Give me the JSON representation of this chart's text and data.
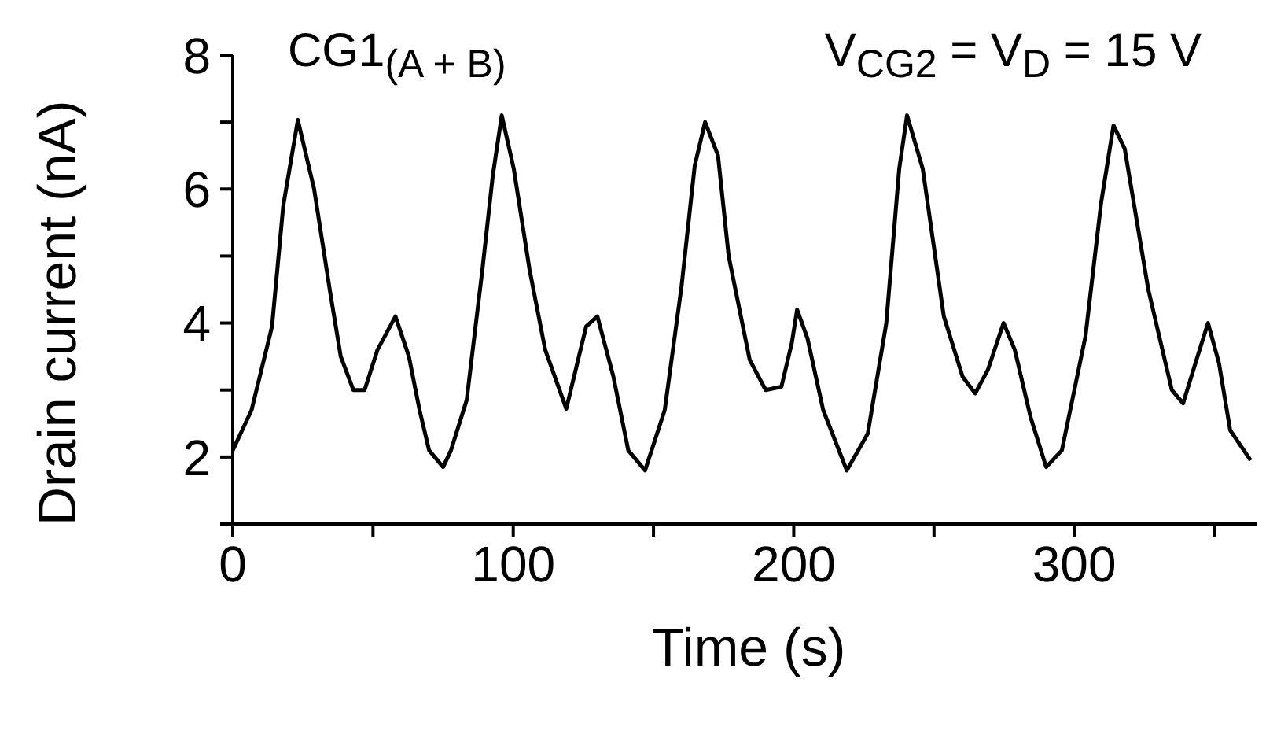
{
  "chart_data": {
    "type": "line",
    "xlabel": "Time (s)",
    "ylabel": "Drain current (nA)",
    "annotations": [
      "CG1$_{(A + B)}$",
      "V$_{CG2}$ = V$_{D}$ = 15 V"
    ],
    "xlim": [
      0,
      365
    ],
    "ylim": [
      1,
      8
    ],
    "xticks": [
      0,
      {
        "value": 50,
        "label": null
      },
      100,
      {
        "value": 150,
        "label": null
      },
      200,
      {
        "value": 250,
        "label": null
      },
      300,
      {
        "value": 350,
        "label": null
      }
    ],
    "yticks": [
      {
        "value": 1,
        "label": null
      },
      2,
      {
        "value": 3,
        "label": null
      },
      4,
      {
        "value": 5,
        "label": null
      },
      6,
      {
        "value": 7,
        "label": null
      },
      8
    ],
    "grid": false,
    "legend": false,
    "marker": "none",
    "line_style": "solid",
    "series": [
      {
        "color": "#000000",
        "x": [
          0,
          6.7,
          14,
          18,
          23.2,
          29,
          34.8,
          38.5,
          43,
          47,
          51.6,
          58,
          62.8,
          66.6,
          70,
          75,
          77.8,
          83.4,
          89,
          92.7,
          95.9,
          100.2,
          105.8,
          111.4,
          118.9,
          126,
          130,
          135.7,
          141,
          147,
          154,
          160,
          164.7,
          168.4,
          173,
          176.8,
          184.3,
          190,
          195.6,
          199.3,
          201.2,
          204.9,
          210.5,
          218.9,
          226.4,
          233,
          237.6,
          240.4,
          246,
          253.5,
          260.2,
          264.7,
          269.2,
          274.8,
          278.8,
          284.4,
          290,
          295.6,
          304,
          309.6,
          314,
          318,
          326.4,
          334.8,
          338.8,
          343.2,
          347.7,
          351.6,
          355.6,
          362.9
        ],
        "values": [
          2.1,
          2.7,
          3.95,
          5.75,
          7.03,
          6.0,
          4.44,
          3.5,
          3.0,
          3.0,
          3.6,
          4.1,
          3.5,
          2.7,
          2.1,
          1.85,
          2.1,
          2.85,
          4.8,
          6.2,
          7.1,
          6.3,
          4.8,
          3.6,
          2.72,
          3.95,
          4.1,
          3.2,
          2.1,
          1.8,
          2.7,
          4.55,
          6.35,
          7.0,
          6.5,
          5.0,
          3.45,
          3.0,
          3.05,
          3.7,
          4.2,
          3.77,
          2.7,
          1.8,
          2.35,
          4.0,
          6.3,
          7.1,
          6.3,
          4.1,
          3.2,
          2.95,
          3.3,
          4.0,
          3.6,
          2.6,
          1.85,
          2.1,
          3.8,
          5.8,
          6.95,
          6.6,
          4.5,
          3.0,
          2.8,
          3.4,
          4.0,
          3.4,
          2.4,
          1.95
        ]
      }
    ]
  }
}
